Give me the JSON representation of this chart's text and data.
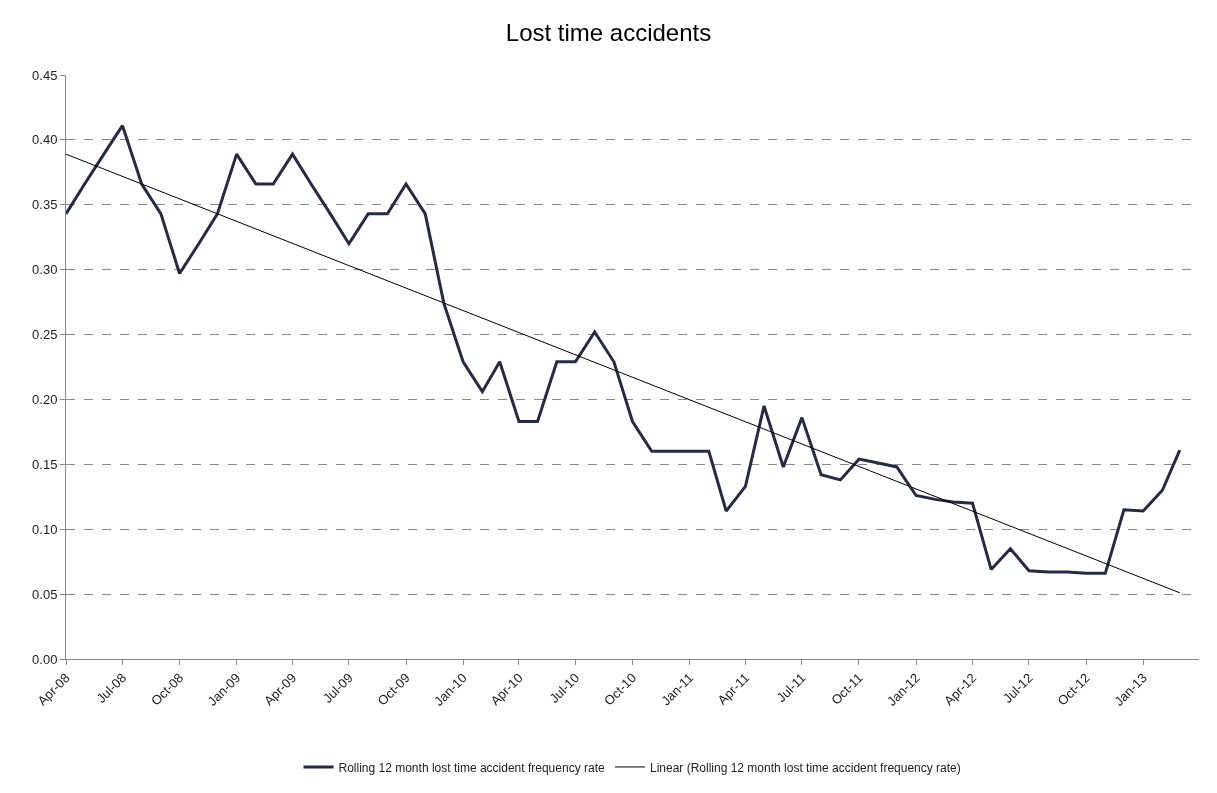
{
  "chart_data": {
    "type": "line",
    "title": "Lost time accidents",
    "x": [
      "2008-04",
      "2008-05",
      "2008-06",
      "2008-07",
      "2008-08",
      "2008-09",
      "2008-10",
      "2008-11",
      "2008-12",
      "2009-01",
      "2009-02",
      "2009-03",
      "2009-04",
      "2009-05",
      "2009-06",
      "2009-07",
      "2009-08",
      "2009-09",
      "2009-10",
      "2009-11",
      "2009-12",
      "2010-01",
      "2010-02",
      "2010-03",
      "2010-04",
      "2010-05",
      "2010-06",
      "2010-07",
      "2010-08",
      "2010-09",
      "2010-10",
      "2010-11",
      "2010-12",
      "2011-01",
      "2011-02",
      "2011-03",
      "2011-04",
      "2011-05",
      "2011-06",
      "2011-07",
      "2011-08",
      "2011-09",
      "2011-10",
      "2011-11",
      "2011-12",
      "2012-01",
      "2012-02",
      "2012-03",
      "2012-04",
      "2012-05",
      "2012-06",
      "2012-07",
      "2012-08",
      "2012-09",
      "2012-10",
      "2012-11",
      "2012-12",
      "2013-01",
      "2013-02",
      "2013-03"
    ],
    "series": [
      {
        "name": "Rolling 12 month lost time accident frequency rate",
        "color": "#262b45",
        "values": [
          0.343,
          0.366,
          0.389,
          0.411,
          0.366,
          0.343,
          0.297,
          0.32,
          0.343,
          0.389,
          0.366,
          0.366,
          0.389,
          0.366,
          0.343,
          0.32,
          0.343,
          0.343,
          0.366,
          0.343,
          0.274,
          0.229,
          0.206,
          0.229,
          0.183,
          0.183,
          0.229,
          0.229,
          0.252,
          0.229,
          0.183,
          0.16,
          0.16,
          0.16,
          0.16,
          0.114,
          0.133,
          0.195,
          0.148,
          0.186,
          0.142,
          0.138,
          0.154,
          0.151,
          0.148,
          0.126,
          0.123,
          0.121,
          0.12,
          0.069,
          0.085,
          0.068,
          0.067,
          0.067,
          0.066,
          0.066,
          0.115,
          0.114,
          0.13,
          0.161
        ]
      },
      {
        "name": "Linear (Rolling 12 month lost time accident frequency rate)",
        "type": "line",
        "color": "#000000",
        "x": [
          "2008-04",
          "2013-03"
        ],
        "values": [
          0.389,
          0.051
        ]
      }
    ],
    "xlim": [
      "2008-04",
      "2013-04"
    ],
    "xticks": [
      {
        "value": "2008-04",
        "label": "Apr-08"
      },
      {
        "value": "2008-07",
        "label": "Jul-08"
      },
      {
        "value": "2008-10",
        "label": "Oct-08"
      },
      {
        "value": "2009-01",
        "label": "Jan-09"
      },
      {
        "value": "2009-04",
        "label": "Apr-09"
      },
      {
        "value": "2009-07",
        "label": "Jul-09"
      },
      {
        "value": "2009-10",
        "label": "Oct-09"
      },
      {
        "value": "2010-01",
        "label": "Jan-10"
      },
      {
        "value": "2010-04",
        "label": "Apr-10"
      },
      {
        "value": "2010-07",
        "label": "Jul-10"
      },
      {
        "value": "2010-10",
        "label": "Oct-10"
      },
      {
        "value": "2011-01",
        "label": "Jan-11"
      },
      {
        "value": "2011-04",
        "label": "Apr-11"
      },
      {
        "value": "2011-07",
        "label": "Jul-11"
      },
      {
        "value": "2011-10",
        "label": "Oct-11"
      },
      {
        "value": "2012-01",
        "label": "Jan-12"
      },
      {
        "value": "2012-04",
        "label": "Apr-12"
      },
      {
        "value": "2012-07",
        "label": "Jul-12"
      },
      {
        "value": "2012-10",
        "label": "Oct-12"
      },
      {
        "value": "2013-01",
        "label": "Jan-13"
      }
    ],
    "ylim": [
      0,
      0.45
    ],
    "yticks": [
      {
        "value": 0,
        "label": "0.00"
      },
      {
        "value": 0.05,
        "label": "0.05"
      },
      {
        "value": 0.1,
        "label": "0.10"
      },
      {
        "value": 0.15,
        "label": "0.15"
      },
      {
        "value": 0.2,
        "label": "0.20"
      },
      {
        "value": 0.25,
        "label": "0.25"
      },
      {
        "value": 0.3,
        "label": "0.30"
      },
      {
        "value": 0.35,
        "label": "0.35"
      },
      {
        "value": 0.4,
        "label": "0.40"
      },
      {
        "value": 0.45,
        "label": "0.45"
      }
    ],
    "grid": "y",
    "legend": "bottom",
    "line_style": "solid"
  }
}
